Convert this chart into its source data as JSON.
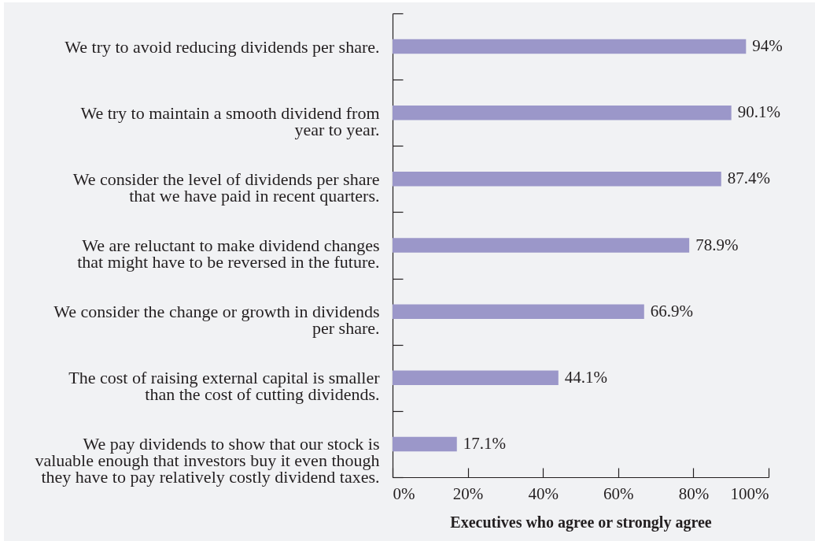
{
  "chart_data": {
    "type": "bar",
    "orientation": "horizontal",
    "categories": [
      "We try to avoid reducing dividends per share.",
      "We try to maintain a smooth dividend from\nyear to year.",
      "We consider the level of dividends per share\nthat we have paid in recent quarters.",
      "We are reluctant to make dividend changes\nthat might have to be reversed in the future.",
      "We consider the change or growth in dividends\nper share.",
      "The cost of raising external capital is smaller\nthan the cost of cutting dividends.",
      "We pay dividends to show that our stock is\nvaluable enough that investors buy it even though\nthey have to pay relatively costly dividend taxes."
    ],
    "values": [
      94,
      90.1,
      87.4,
      78.9,
      66.9,
      44.1,
      17.1
    ],
    "value_labels": [
      "94%",
      "90.1%",
      "87.4%",
      "78.9%",
      "66.9%",
      "44.1%",
      "17.1%"
    ],
    "color": "#9b97c9",
    "xlabel": "Executives who agree or strongly agree",
    "xlim": [
      0,
      100
    ],
    "xticks": [
      {
        "value": 0,
        "label": "0%"
      },
      {
        "value": 20,
        "label": "20%"
      },
      {
        "value": 40,
        "label": "40%"
      },
      {
        "value": 60,
        "label": "60%"
      },
      {
        "value": 80,
        "label": "80%"
      },
      {
        "value": 100,
        "label": "100%"
      }
    ]
  }
}
